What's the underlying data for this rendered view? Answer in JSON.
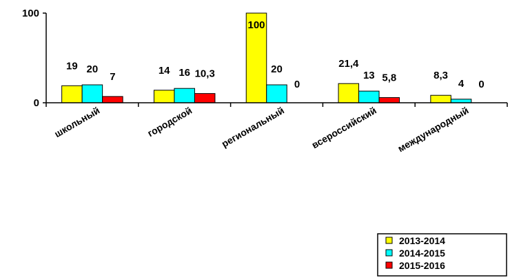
{
  "chart_data": {
    "type": "bar",
    "categories": [
      "школьный",
      "городской",
      "региональный",
      "всероссийский",
      "международный"
    ],
    "series": [
      {
        "name": "2013-2014",
        "values": [
          19,
          14,
          100,
          21.4,
          8.3
        ],
        "labels": [
          "19",
          "14",
          "100",
          "21,4",
          "8,3"
        ],
        "color": "#ffff00"
      },
      {
        "name": "2014-2015",
        "values": [
          20,
          16,
          20,
          13,
          4
        ],
        "labels": [
          "20",
          "16",
          "20",
          "13",
          "4"
        ],
        "color": "#00ffff"
      },
      {
        "name": "2015-2016",
        "values": [
          7,
          10.3,
          0,
          5.8,
          0
        ],
        "labels": [
          "7",
          "10,3",
          "0",
          "5,8",
          "0"
        ],
        "color": "#ff0000"
      }
    ],
    "ylim": [
      0,
      100
    ],
    "yticks": [
      {
        "value": 0,
        "label": "0"
      },
      {
        "value": 100,
        "label": "100"
      }
    ],
    "title": "",
    "xlabel": "",
    "ylabel": "",
    "grid": false,
    "legend": "bottom-right"
  }
}
